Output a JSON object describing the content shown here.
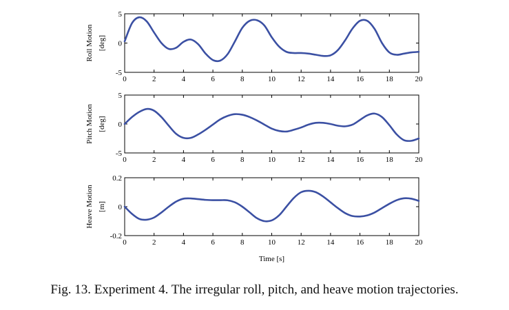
{
  "caption": "Fig. 13.   Experiment 4. The irregular roll, pitch, and heave motion trajectories.",
  "line_color": "#3b50a3",
  "chart_data": [
    {
      "type": "line",
      "title": "",
      "ylabel_line1": "Roll Motion",
      "ylabel_line2": "[deg]",
      "xlabel": "",
      "xlim": [
        0,
        20
      ],
      "ylim": [
        -5,
        5
      ],
      "xticks": [
        "0",
        "2",
        "4",
        "6",
        "8",
        "10",
        "12",
        "14",
        "16",
        "18",
        "20"
      ],
      "yticks": [
        {
          "v": 5,
          "label": "5"
        },
        {
          "v": 0,
          "label": "0"
        },
        {
          "v": -5,
          "label": "-5"
        }
      ],
      "grid": false,
      "series": [
        {
          "x": [
            0,
            0.5,
            1,
            1.5,
            2,
            2.5,
            3,
            3.5,
            4,
            4.5,
            5,
            5.5,
            6,
            6.5,
            7,
            7.5,
            8,
            8.5,
            9,
            9.5,
            10,
            10.5,
            11,
            11.5,
            12,
            12.5,
            13,
            13.5,
            14,
            14.5,
            15,
            15.5,
            16,
            16.5,
            17,
            17.5,
            18,
            18.5,
            19,
            19.5,
            20
          ],
          "y": [
            0.3,
            3.4,
            4.4,
            3.7,
            1.8,
            0.0,
            -1.0,
            -0.8,
            0.2,
            0.6,
            -0.2,
            -1.8,
            -2.9,
            -3.0,
            -1.9,
            0.3,
            2.6,
            3.8,
            3.9,
            3.0,
            1.0,
            -0.6,
            -1.5,
            -1.7,
            -1.7,
            -1.8,
            -2.0,
            -2.2,
            -2.1,
            -1.2,
            0.5,
            2.5,
            3.8,
            3.8,
            2.4,
            0.0,
            -1.6,
            -2.0,
            -1.8,
            -1.6,
            -1.5
          ]
        }
      ]
    },
    {
      "type": "line",
      "title": "",
      "ylabel_line1": "Pitch Motion",
      "ylabel_line2": "[deg]",
      "xlabel": "",
      "xlim": [
        0,
        20
      ],
      "ylim": [
        -5,
        5
      ],
      "xticks": [
        "0",
        "2",
        "4",
        "6",
        "8",
        "10",
        "12",
        "14",
        "16",
        "18",
        "20"
      ],
      "yticks": [
        {
          "v": 5,
          "label": "5"
        },
        {
          "v": 0,
          "label": "0"
        },
        {
          "v": -5,
          "label": "-5"
        }
      ],
      "grid": false,
      "series": [
        {
          "x": [
            0,
            0.5,
            1,
            1.5,
            2,
            2.5,
            3,
            3.5,
            4,
            4.5,
            5,
            5.5,
            6,
            6.5,
            7,
            7.5,
            8,
            8.5,
            9,
            9.5,
            10,
            10.5,
            11,
            11.5,
            12,
            12.5,
            13,
            13.5,
            14,
            14.5,
            15,
            15.5,
            16,
            16.5,
            17,
            17.5,
            18,
            18.5,
            19,
            19.5,
            20
          ],
          "y": [
            0.0,
            1.2,
            2.1,
            2.6,
            2.3,
            1.2,
            -0.3,
            -1.7,
            -2.4,
            -2.4,
            -1.8,
            -1.0,
            -0.1,
            0.8,
            1.4,
            1.7,
            1.6,
            1.2,
            0.6,
            -0.1,
            -0.8,
            -1.2,
            -1.3,
            -1.0,
            -0.6,
            -0.1,
            0.2,
            0.2,
            0.0,
            -0.3,
            -0.4,
            -0.1,
            0.7,
            1.5,
            1.8,
            1.2,
            -0.2,
            -1.8,
            -2.8,
            -2.9,
            -2.5
          ]
        }
      ]
    },
    {
      "type": "line",
      "title": "",
      "ylabel_line1": "Heave Motion",
      "ylabel_line2": "[m]",
      "xlabel": "Time [s]",
      "xlim": [
        0,
        20
      ],
      "ylim": [
        -0.2,
        0.2
      ],
      "xticks": [
        "0",
        "2",
        "4",
        "6",
        "8",
        "10",
        "12",
        "14",
        "16",
        "18",
        "20"
      ],
      "yticks": [
        {
          "v": 0.2,
          "label": "0.2"
        },
        {
          "v": 0,
          "label": "0"
        },
        {
          "v": -0.2,
          "label": "-0.2"
        }
      ],
      "grid": false,
      "series": [
        {
          "x": [
            0,
            0.5,
            1,
            1.5,
            2,
            2.5,
            3,
            3.5,
            4,
            4.5,
            5,
            5.5,
            6,
            6.5,
            7,
            7.5,
            8,
            8.5,
            9,
            9.5,
            10,
            10.5,
            11,
            11.5,
            12,
            12.5,
            13,
            13.5,
            14,
            14.5,
            15,
            15.5,
            16,
            16.5,
            17,
            17.5,
            18,
            18.5,
            19,
            19.5,
            20
          ],
          "y": [
            0.0,
            -0.05,
            -0.085,
            -0.09,
            -0.075,
            -0.04,
            0.0,
            0.035,
            0.055,
            0.057,
            0.052,
            0.047,
            0.045,
            0.045,
            0.044,
            0.03,
            0.0,
            -0.04,
            -0.08,
            -0.1,
            -0.095,
            -0.06,
            0.0,
            0.06,
            0.1,
            0.11,
            0.1,
            0.07,
            0.03,
            -0.01,
            -0.045,
            -0.065,
            -0.068,
            -0.06,
            -0.04,
            -0.01,
            0.02,
            0.045,
            0.058,
            0.055,
            0.04
          ]
        }
      ]
    }
  ]
}
